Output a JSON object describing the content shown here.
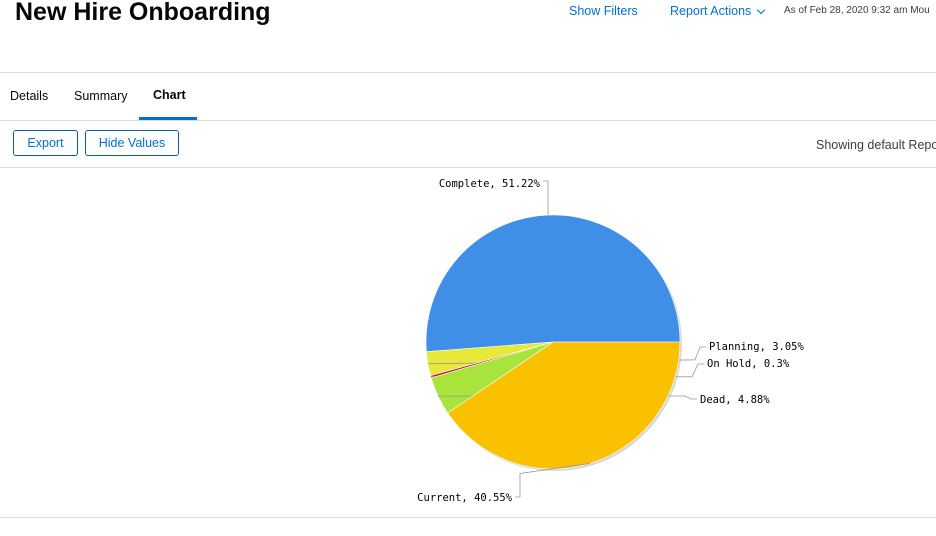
{
  "header": {
    "title": "New Hire Onboarding",
    "show_filters": "Show Filters",
    "report_actions": "Report Actions",
    "as_of": "As of Feb 28, 2020 9:32 am Mou"
  },
  "tabs": [
    {
      "label": "Details"
    },
    {
      "label": "Summary"
    },
    {
      "label": "Chart",
      "active": true
    }
  ],
  "toolbar": {
    "export_label": "Export",
    "hide_values_label": "Hide Values",
    "showing_text": "Showing default Repor"
  },
  "chart_data": {
    "type": "pie",
    "slices": [
      {
        "name": "Complete",
        "value": 51.22,
        "label": "Complete, 51.22%",
        "color": "#3f8fe8"
      },
      {
        "name": "Planning",
        "value": 3.05,
        "label": "Planning, 3.05%",
        "color": "#e7e83a"
      },
      {
        "name": "On Hold",
        "value": 0.3,
        "label": "On Hold, 0.3%",
        "color": "#c8102e"
      },
      {
        "name": "Dead",
        "value": 4.88,
        "label": "Dead, 4.88%",
        "color": "#a8e43c"
      },
      {
        "name": "Current",
        "value": 40.55,
        "label": "Current, 40.55%",
        "color": "#fac100"
      }
    ]
  }
}
